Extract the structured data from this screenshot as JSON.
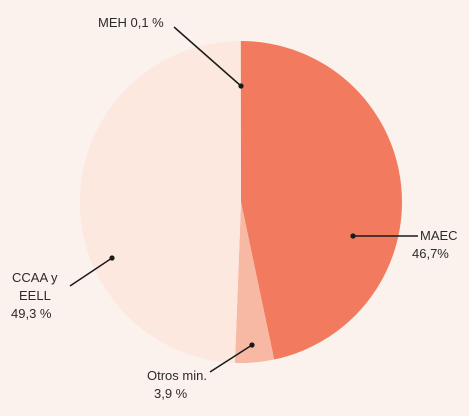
{
  "chart_data": {
    "type": "pie",
    "slices": [
      {
        "label": "MAEC",
        "display_value": "46,7%",
        "value": 46.7,
        "color": "#f27b5f"
      },
      {
        "label": "Otros min.",
        "display_value": "3,9 %",
        "value": 3.9,
        "color": "#f8b9a4"
      },
      {
        "label": "CCAA y EELL",
        "display_value": "49,3 %",
        "value": 49.3,
        "color": "#fde8df"
      },
      {
        "label": "MEH",
        "display_value": "0,1 %",
        "value": 0.1,
        "color": "#fbd6c8"
      }
    ],
    "labels": {
      "meh": "MEH 0,1 %",
      "maec_name": "MAEC",
      "maec_value": "46,7%",
      "otros_name": "Otros min.",
      "otros_value": "3,9 %",
      "ccaa_line1": "CCAA y",
      "ccaa_line2": "EELL",
      "ccaa_value": "49,3 %"
    },
    "start": "top",
    "direction": "clockwise",
    "background": "#fbf2ee"
  }
}
